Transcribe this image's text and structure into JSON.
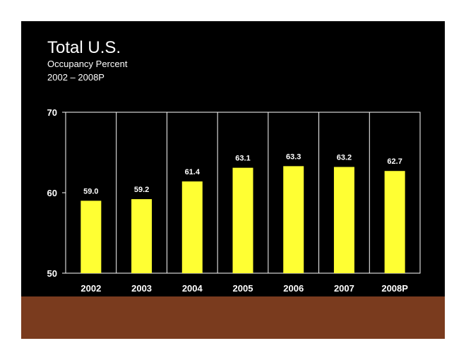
{
  "title": "Total U.S.",
  "subtitle": "Occupancy Percent",
  "period": "2002 – 2008P",
  "colors": {
    "bar": "#ffff33",
    "background": "#000000",
    "band": "#7a3b1e",
    "text": "#ffffff",
    "grid": "#ffffff"
  },
  "chart_data": {
    "type": "bar",
    "title": "Total U.S.",
    "subtitle": "Occupancy Percent 2002 – 2008P",
    "categories": [
      "2002",
      "2003",
      "2004",
      "2005",
      "2006",
      "2007",
      "2008P"
    ],
    "values": [
      59.0,
      59.2,
      61.4,
      63.1,
      63.3,
      63.2,
      62.7
    ],
    "value_labels": [
      "59.0",
      "59.2",
      "61.4",
      "63.1",
      "63.3",
      "63.2",
      "62.7"
    ],
    "ylim": [
      50,
      70
    ],
    "yticks": [
      50,
      60,
      70
    ],
    "xlabel": "",
    "ylabel": "",
    "grid": "vertical separators",
    "legend": "none"
  }
}
